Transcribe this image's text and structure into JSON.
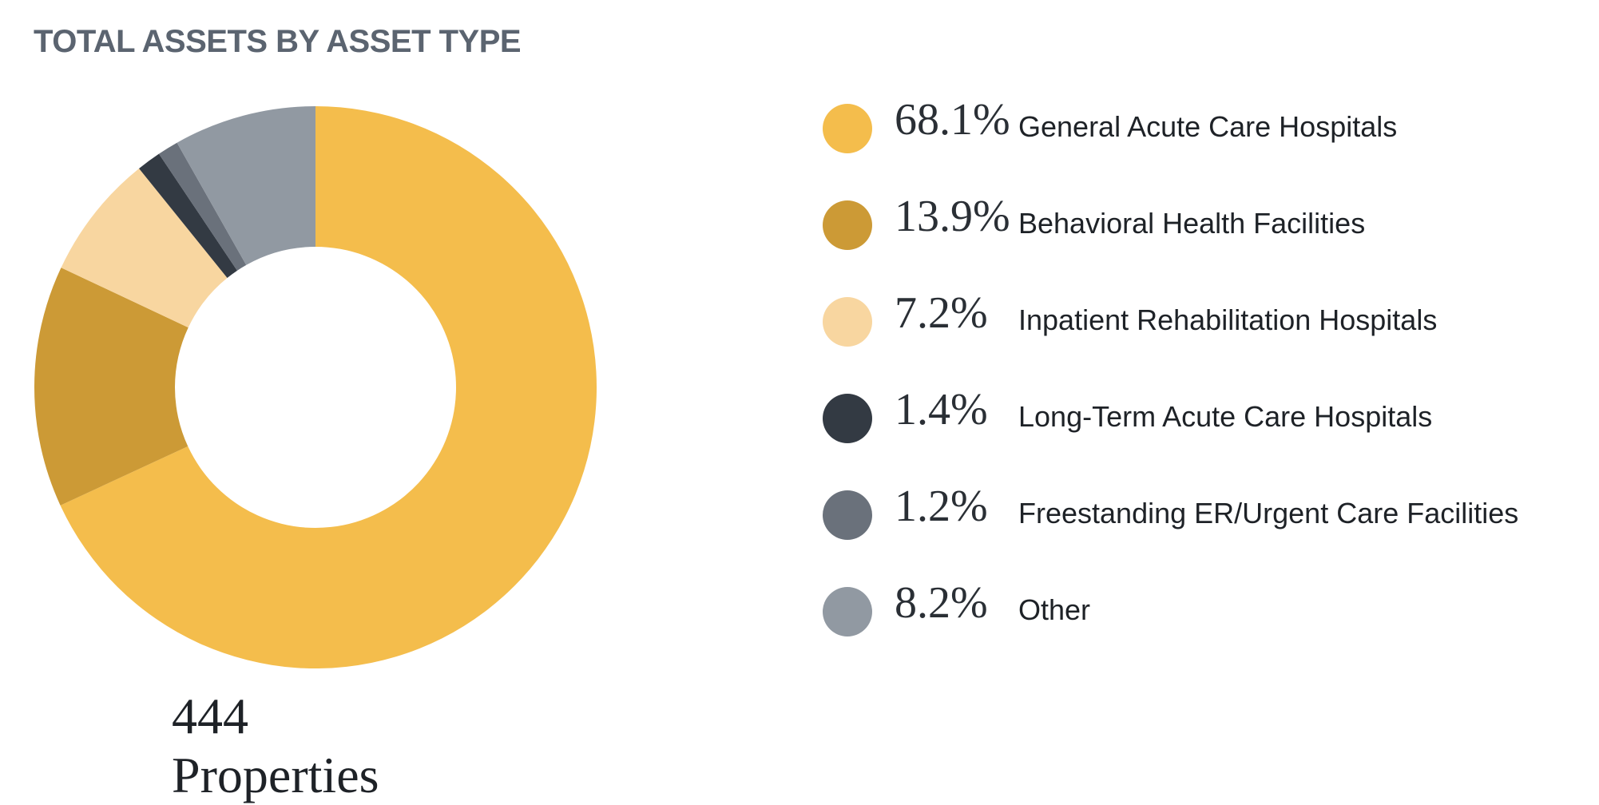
{
  "chart_data": {
    "type": "pie",
    "donut": true,
    "title": "TOTAL ASSETS BY ASSET TYPE",
    "center_caption": "444 Properties",
    "legend_position": "right",
    "slices": [
      {
        "label": "General Acute Care Hospitals",
        "value": 68.1,
        "display": "68.1%",
        "color": "#f4bd4c"
      },
      {
        "label": "Behavioral Health Facilities",
        "value": 13.9,
        "display": "13.9%",
        "color": "#cc9a36"
      },
      {
        "label": "Inpatient Rehabilitation Hospitals",
        "value": 7.2,
        "display": "7.2%",
        "color": "#f8d6a0"
      },
      {
        "label": "Long-Term Acute Care Hospitals",
        "value": 1.4,
        "display": "1.4%",
        "color": "#333a43"
      },
      {
        "label": "Freestanding ER/Urgent Care Facilities",
        "value": 1.2,
        "display": "1.2%",
        "color": "#6a717b"
      },
      {
        "label": "Other",
        "value": 8.2,
        "display": "8.2%",
        "color": "#9199a2"
      }
    ]
  }
}
